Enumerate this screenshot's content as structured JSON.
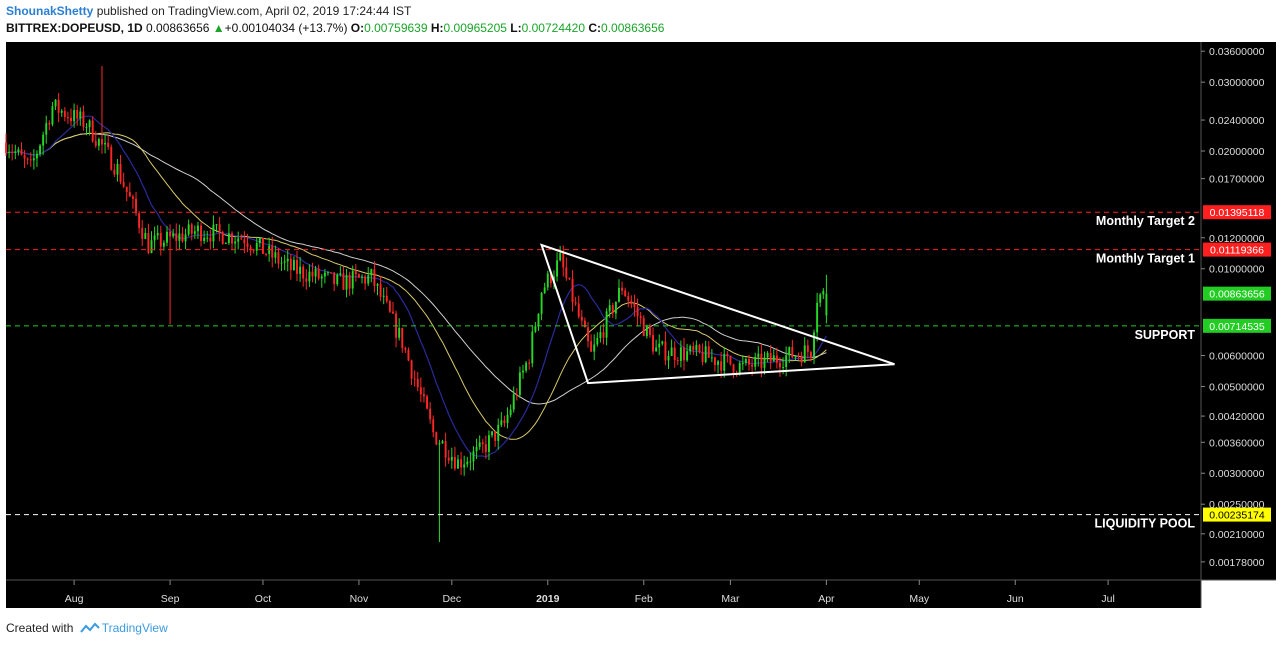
{
  "header": {
    "author": "ShounakShetty",
    "published": "published on TradingView.com, April 02, 2019 17:24:44 IST",
    "symbol": "BITTREX:DOPEUSD, 1D",
    "last": "0.00863656",
    "change": "+0.00104034 (+13.7%)",
    "open_label": "O:",
    "open": "0.00759639",
    "high_label": "H:",
    "high": "0.00965205",
    "low_label": "L:",
    "low": "0.00724420",
    "close_label": "C:",
    "close": "0.00863656"
  },
  "footer": {
    "created_with": "Created with",
    "brand": "TradingView"
  },
  "colors": {
    "background": "#000000",
    "up": "#26d926",
    "down": "#ff2626",
    "red_level": "#ff1f1f",
    "green_level": "#22cc22",
    "yellow_level": "#ffff00",
    "ma_fast": "#2a2a9a",
    "ma_mid": "#d8c96a",
    "ma_slow": "#cfcfcf",
    "pattern": "#ffffff"
  },
  "chart_data": {
    "type": "candlestick",
    "y_scale": "log",
    "ylim": [
      0.0016,
      0.038
    ],
    "y_ticks": [
      "0.03600000",
      "0.03000000",
      "0.02400000",
      "0.02000000",
      "0.01700000",
      "0.01200000",
      "0.01000000",
      "0.00600000",
      "0.00500000",
      "0.00420000",
      "0.00360000",
      "0.00300000",
      "0.00250000",
      "0.00210000",
      "0.00178000"
    ],
    "x_range": [
      "2018-07-10",
      "2019-07-31"
    ],
    "x_ticks": [
      {
        "label": "Aug",
        "date": "2018-08-01"
      },
      {
        "label": "Sep",
        "date": "2018-09-01"
      },
      {
        "label": "Oct",
        "date": "2018-10-01"
      },
      {
        "label": "Nov",
        "date": "2018-11-01"
      },
      {
        "label": "Dec",
        "date": "2018-12-01"
      },
      {
        "label": "2019",
        "date": "2019-01-01",
        "bold": true
      },
      {
        "label": "Feb",
        "date": "2019-02-01"
      },
      {
        "label": "Mar",
        "date": "2019-03-01"
      },
      {
        "label": "Apr",
        "date": "2019-04-01"
      },
      {
        "label": "May",
        "date": "2019-05-01"
      },
      {
        "label": "Jun",
        "date": "2019-06-01"
      },
      {
        "label": "Jul",
        "date": "2019-07-01"
      }
    ],
    "key_points": [
      {
        "date": "2018-07-10",
        "price": 0.021
      },
      {
        "date": "2018-07-18",
        "price": 0.018
      },
      {
        "date": "2018-07-25",
        "price": 0.026
      },
      {
        "date": "2018-08-05",
        "price": 0.0235
      },
      {
        "date": "2018-08-15",
        "price": 0.018
      },
      {
        "date": "2018-08-25",
        "price": 0.0115
      },
      {
        "date": "2018-09-10",
        "price": 0.0125
      },
      {
        "date": "2018-09-25",
        "price": 0.012
      },
      {
        "date": "2018-10-10",
        "price": 0.01
      },
      {
        "date": "2018-10-25",
        "price": 0.0092
      },
      {
        "date": "2018-11-05",
        "price": 0.0095
      },
      {
        "date": "2018-11-15",
        "price": 0.0065
      },
      {
        "date": "2018-11-25",
        "price": 0.0038
      },
      {
        "date": "2018-12-03",
        "price": 0.0032
      },
      {
        "date": "2018-12-10",
        "price": 0.0034
      },
      {
        "date": "2018-12-18",
        "price": 0.004
      },
      {
        "date": "2018-12-26",
        "price": 0.006
      },
      {
        "date": "2018-12-30",
        "price": 0.0088
      },
      {
        "date": "2019-01-05",
        "price": 0.0105
      },
      {
        "date": "2019-01-15",
        "price": 0.006
      },
      {
        "date": "2019-01-25",
        "price": 0.009
      },
      {
        "date": "2019-02-05",
        "price": 0.0062
      },
      {
        "date": "2019-02-20",
        "price": 0.006
      },
      {
        "date": "2019-03-05",
        "price": 0.0056
      },
      {
        "date": "2019-03-20",
        "price": 0.006
      },
      {
        "date": "2019-03-27",
        "price": 0.0062
      },
      {
        "date": "2019-03-29",
        "price": 0.0085
      },
      {
        "date": "2019-04-01",
        "price": 0.0086
      }
    ],
    "spikes": [
      {
        "date": "2018-08-10",
        "high": 0.033
      },
      {
        "date": "2018-09-01",
        "low": 0.0072
      },
      {
        "date": "2018-11-27",
        "low": 0.002
      },
      {
        "date": "2019-04-02",
        "high": 0.0097
      }
    ],
    "last_candle": {
      "open": 0.00759639,
      "high": 0.00965205,
      "low": 0.0072442,
      "close": 0.00863656
    },
    "levels": [
      {
        "name": "Monthly Target 2",
        "value": 0.01395118,
        "label": "0.01395118",
        "style": "red"
      },
      {
        "name": "Monthly Target 1",
        "value": 0.01119366,
        "label": "0.01119366",
        "style": "red"
      },
      {
        "name": "current",
        "value": 0.00863656,
        "label": "0.00863656",
        "style": "green",
        "line": false
      },
      {
        "name": "SUPPORT",
        "value": 0.00714535,
        "label": "0.00714535",
        "style": "green"
      },
      {
        "name": "LIQUIDITY POOL",
        "value": 0.00235174,
        "label": "0.00235174",
        "style": "yellow"
      }
    ],
    "level_texts": {
      "target2": "Monthly Target 2",
      "target1": "Monthly Target 1",
      "support": "SUPPORT",
      "liquidity": "LIQUIDITY POOL"
    },
    "triangle": [
      {
        "date": "2018-12-30",
        "price": 0.0115
      },
      {
        "date": "2019-01-14",
        "price": 0.0051
      },
      {
        "date": "2019-04-23",
        "price": 0.0057
      }
    ]
  }
}
